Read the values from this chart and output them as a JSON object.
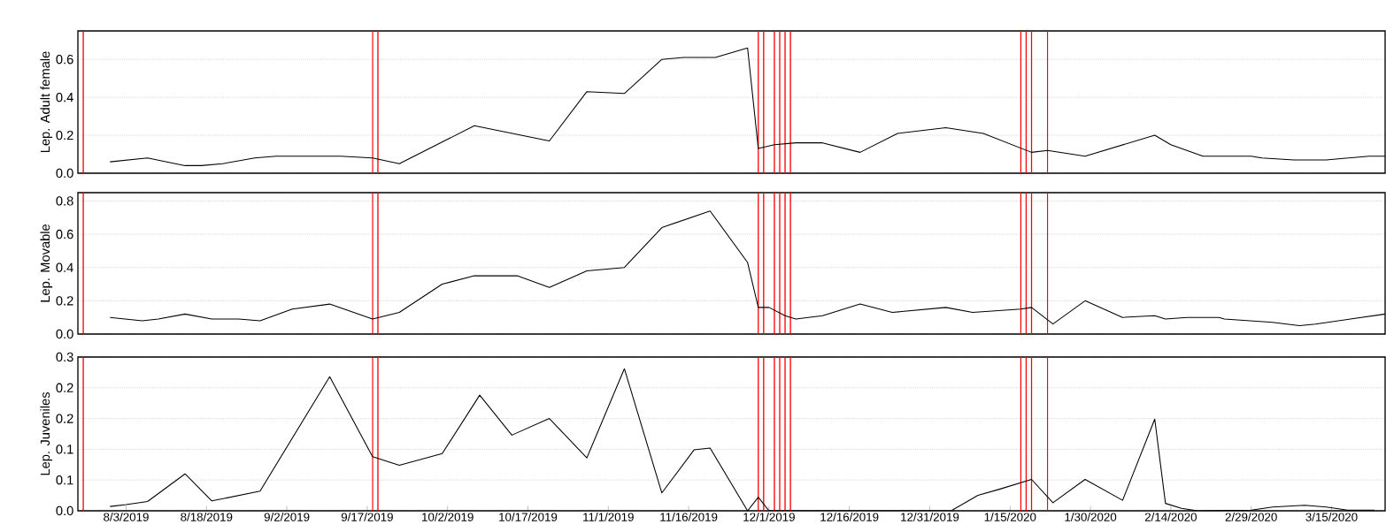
{
  "chart_data": [
    {
      "type": "line",
      "ylabel": "Lep. Adult female",
      "color": "#000000",
      "x": [
        "2019-07-31",
        "2019-08-07",
        "2019-08-14",
        "2019-08-17",
        "2019-08-21",
        "2019-08-27",
        "2019-08-31",
        "2019-09-12",
        "2019-09-18",
        "2019-09-23",
        "2019-10-07",
        "2019-10-21",
        "2019-10-28",
        "2019-11-04",
        "2019-11-11",
        "2019-11-15",
        "2019-11-21",
        "2019-11-27",
        "2019-11-29",
        "2019-12-02",
        "2019-12-06",
        "2019-12-11",
        "2019-12-18",
        "2019-12-25",
        "2020-01-03",
        "2020-01-10",
        "2020-01-19",
        "2020-01-22",
        "2020-01-29",
        "2020-02-11",
        "2020-02-14",
        "2020-02-20",
        "2020-02-29",
        "2020-03-02",
        "2020-03-08",
        "2020-03-14",
        "2020-03-22",
        "2020-03-25"
      ],
      "values": [
        0.06,
        0.08,
        0.04,
        0.04,
        0.05,
        0.08,
        0.09,
        0.09,
        0.08,
        0.05,
        0.25,
        0.17,
        0.43,
        0.42,
        0.6,
        0.61,
        0.61,
        0.66,
        0.13,
        0.15,
        0.16,
        0.16,
        0.11,
        0.21,
        0.24,
        0.21,
        0.11,
        0.12,
        0.09,
        0.2,
        0.15,
        0.09,
        0.09,
        0.08,
        0.07,
        0.07,
        0.09,
        0.09
      ],
      "xlim": [
        "2019-07-25",
        "2020-03-25"
      ],
      "ylim": [
        0,
        0.75
      ],
      "yticks": [
        {
          "value": 0,
          "label": "0.0"
        },
        {
          "value": 0.2,
          "label": "0.2"
        },
        {
          "value": 0.4,
          "label": "0.4"
        },
        {
          "value": 0.6,
          "label": "0.6"
        }
      ],
      "grid": "y",
      "tick_labels": "y",
      "ref_lines": [
        {
          "axis": "x",
          "value": "2019-07-26",
          "color": "#ff0000"
        },
        {
          "axis": "x",
          "value": "2019-09-18",
          "color": "#ff0000"
        },
        {
          "axis": "x",
          "value": "2019-09-19",
          "color": "#ff0000"
        },
        {
          "axis": "x",
          "value": "2019-11-29",
          "color": "#ff0000"
        },
        {
          "axis": "x",
          "value": "2019-11-30",
          "color": "#ff0000"
        },
        {
          "axis": "x",
          "value": "2019-12-02",
          "color": "#ff0000"
        },
        {
          "axis": "x",
          "value": "2019-12-03",
          "color": "#ff0000"
        },
        {
          "axis": "x",
          "value": "2019-12-04",
          "color": "#ff0000"
        },
        {
          "axis": "x",
          "value": "2019-12-05",
          "color": "#ff0000"
        },
        {
          "axis": "x",
          "value": "2020-01-17",
          "color": "#ff0000"
        },
        {
          "axis": "x",
          "value": "2020-01-18",
          "color": "#ff0000"
        },
        {
          "axis": "x",
          "value": "2020-01-19",
          "color": "#ff0000"
        },
        {
          "axis": "x",
          "value": "2020-01-22",
          "color": "#ff0000"
        }
      ]
    },
    {
      "type": "line",
      "ylabel": "Lep. Movable",
      "color": "#000000",
      "x": [
        "2019-07-31",
        "2019-08-03",
        "2019-08-06",
        "2019-08-09",
        "2019-08-14",
        "2019-08-19",
        "2019-08-24",
        "2019-08-28",
        "2019-09-03",
        "2019-09-10",
        "2019-09-18",
        "2019-09-23",
        "2019-10-01",
        "2019-10-07",
        "2019-10-15",
        "2019-10-21",
        "2019-10-28",
        "2019-11-04",
        "2019-11-11",
        "2019-11-20",
        "2019-11-27",
        "2019-11-29",
        "2019-12-01",
        "2019-12-04",
        "2019-12-06",
        "2019-12-11",
        "2019-12-18",
        "2019-12-24",
        "2020-01-03",
        "2020-01-08",
        "2020-01-17",
        "2020-01-19",
        "2020-01-23",
        "2020-01-29",
        "2020-02-05",
        "2020-02-11",
        "2020-02-13",
        "2020-02-17",
        "2020-02-23",
        "2020-02-24",
        "2020-03-04",
        "2020-03-09",
        "2020-03-12",
        "2020-03-25"
      ],
      "values": [
        0.1,
        0.09,
        0.08,
        0.09,
        0.12,
        0.09,
        0.09,
        0.08,
        0.15,
        0.18,
        0.09,
        0.13,
        0.3,
        0.35,
        0.35,
        0.28,
        0.38,
        0.4,
        0.64,
        0.74,
        0.43,
        0.16,
        0.16,
        0.11,
        0.09,
        0.11,
        0.18,
        0.13,
        0.16,
        0.13,
        0.15,
        0.16,
        0.06,
        0.2,
        0.1,
        0.11,
        0.09,
        0.1,
        0.1,
        0.09,
        0.07,
        0.05,
        0.06,
        0.12
      ],
      "xlim": [
        "2019-07-25",
        "2020-03-25"
      ],
      "ylim": [
        0,
        0.85
      ],
      "yticks": [
        {
          "value": 0,
          "label": "0.0"
        },
        {
          "value": 0.2,
          "label": "0.2"
        },
        {
          "value": 0.4,
          "label": "0.4"
        },
        {
          "value": 0.6,
          "label": "0.6"
        },
        {
          "value": 0.8,
          "label": "0.8"
        }
      ],
      "grid": "y",
      "tick_labels": "y",
      "ref_lines": [
        {
          "axis": "x",
          "value": "2019-07-26",
          "color": "#ff0000"
        },
        {
          "axis": "x",
          "value": "2019-09-18",
          "color": "#ff0000"
        },
        {
          "axis": "x",
          "value": "2019-09-19",
          "color": "#ff0000"
        },
        {
          "axis": "x",
          "value": "2019-11-29",
          "color": "#ff0000"
        },
        {
          "axis": "x",
          "value": "2019-11-30",
          "color": "#ff0000"
        },
        {
          "axis": "x",
          "value": "2019-12-02",
          "color": "#ff0000"
        },
        {
          "axis": "x",
          "value": "2019-12-03",
          "color": "#ff0000"
        },
        {
          "axis": "x",
          "value": "2019-12-04",
          "color": "#ff0000"
        },
        {
          "axis": "x",
          "value": "2019-12-05",
          "color": "#ff0000"
        },
        {
          "axis": "x",
          "value": "2020-01-17",
          "color": "#ff0000"
        },
        {
          "axis": "x",
          "value": "2020-01-18",
          "color": "#ff0000"
        },
        {
          "axis": "x",
          "value": "2020-01-19",
          "color": "#ff0000"
        },
        {
          "axis": "x",
          "value": "2020-01-22",
          "color": "#ff0000"
        }
      ]
    },
    {
      "type": "line",
      "ylabel": "Lep. Juveniles",
      "color": "#000000",
      "x": [
        "2019-07-31",
        "2019-08-03",
        "2019-08-07",
        "2019-08-14",
        "2019-08-19",
        "2019-08-28",
        "2019-09-10",
        "2019-09-18",
        "2019-09-23",
        "2019-10-01",
        "2019-10-08",
        "2019-10-14",
        "2019-10-21",
        "2019-10-28",
        "2019-11-04",
        "2019-11-11",
        "2019-11-17",
        "2019-11-20",
        "2019-11-27",
        "2019-11-29",
        "2019-12-01",
        "2020-01-04",
        "2020-01-09",
        "2020-01-13",
        "2020-01-19",
        "2020-01-23",
        "2020-01-29",
        "2020-02-05",
        "2020-02-11",
        "2020-02-13",
        "2020-02-16",
        "2020-02-19",
        "2020-02-29",
        "2020-03-04",
        "2020-03-10",
        "2020-03-14",
        "2020-03-18",
        "2020-03-23"
      ],
      "values": [
        0.007,
        0.01,
        0.015,
        0.06,
        0.016,
        0.032,
        0.218,
        0.088,
        0.074,
        0.093,
        0.188,
        0.123,
        0.15,
        0.086,
        0.231,
        0.029,
        0.099,
        0.102,
        0,
        0.022,
        0,
        0,
        0.025,
        0.035,
        0.051,
        0.013,
        0.051,
        0.017,
        0.149,
        0.012,
        0.004,
        0,
        0.001,
        0.006,
        0.009,
        0.006,
        0.001,
        0.001
      ],
      "xlim": [
        "2019-07-25",
        "2020-03-25"
      ],
      "ylim": [
        0,
        0.25
      ],
      "xticks": [
        {
          "value": "2019-08-03",
          "label": "8/3/2019"
        },
        {
          "value": "2019-08-18",
          "label": "8/18/2019"
        },
        {
          "value": "2019-09-02",
          "label": "9/2/2019"
        },
        {
          "value": "2019-09-17",
          "label": "9/17/2019"
        },
        {
          "value": "2019-10-02",
          "label": "10/2/2019"
        },
        {
          "value": "2019-10-17",
          "label": "10/17/2019"
        },
        {
          "value": "2019-11-01",
          "label": "11/1/2019"
        },
        {
          "value": "2019-11-16",
          "label": "11/16/2019"
        },
        {
          "value": "2019-12-01",
          "label": "12/1/2019"
        },
        {
          "value": "2019-12-16",
          "label": "12/16/2019"
        },
        {
          "value": "2019-12-31",
          "label": "12/31/2019"
        },
        {
          "value": "2020-01-15",
          "label": "1/15/2020"
        },
        {
          "value": "2020-01-30",
          "label": "1/30/2020"
        },
        {
          "value": "2020-02-14",
          "label": "2/14/2020"
        },
        {
          "value": "2020-02-29",
          "label": "2/29/2020"
        },
        {
          "value": "2020-03-15",
          "label": "3/15/2020"
        }
      ],
      "yticks": [
        {
          "value": 0,
          "label": "0.0"
        },
        {
          "value": 0.05,
          "label": "0.1"
        },
        {
          "value": 0.1,
          "label": "0.1"
        },
        {
          "value": 0.15,
          "label": "0.2"
        },
        {
          "value": 0.2,
          "label": "0.2"
        },
        {
          "value": 0.25,
          "label": "0.3"
        }
      ],
      "grid": "y",
      "ref_lines": [
        {
          "axis": "x",
          "value": "2019-07-26",
          "color": "#ff0000"
        },
        {
          "axis": "x",
          "value": "2019-09-18",
          "color": "#ff0000"
        },
        {
          "axis": "x",
          "value": "2019-09-19",
          "color": "#ff0000"
        },
        {
          "axis": "x",
          "value": "2019-11-29",
          "color": "#ff0000"
        },
        {
          "axis": "x",
          "value": "2019-11-30",
          "color": "#ff0000"
        },
        {
          "axis": "x",
          "value": "2019-12-02",
          "color": "#ff0000"
        },
        {
          "axis": "x",
          "value": "2019-12-03",
          "color": "#ff0000"
        },
        {
          "axis": "x",
          "value": "2019-12-04",
          "color": "#ff0000"
        },
        {
          "axis": "x",
          "value": "2019-12-05",
          "color": "#ff0000"
        },
        {
          "axis": "x",
          "value": "2020-01-17",
          "color": "#ff0000"
        },
        {
          "axis": "x",
          "value": "2020-01-18",
          "color": "#ff0000"
        },
        {
          "axis": "x",
          "value": "2020-01-19",
          "color": "#ff0000"
        },
        {
          "axis": "x",
          "value": "2020-01-22",
          "color": "#ff0000"
        }
      ]
    }
  ]
}
